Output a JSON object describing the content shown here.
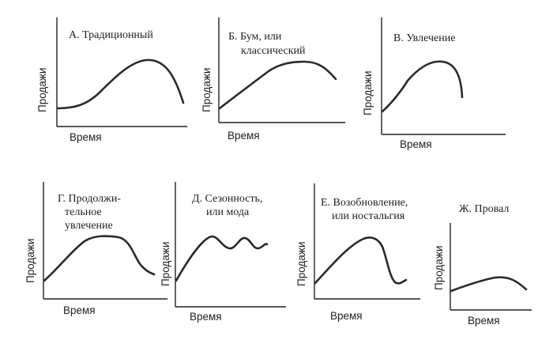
{
  "panels": [
    {
      "title": [
        "А. Традиционный"
      ],
      "xlabel": "Время",
      "ylabel": "Продажи",
      "pattern": "traditional"
    },
    {
      "title": [
        "Б. Бум, или",
        "классический"
      ],
      "xlabel": "Время",
      "ylabel": "Продажи",
      "pattern": "boom"
    },
    {
      "title": [
        "В. Увлечение"
      ],
      "xlabel": "Время",
      "ylabel": "Продажи",
      "pattern": "fad"
    },
    {
      "title": [
        "Г. Продолжи-",
        "тельное",
        "увлечение"
      ],
      "xlabel": "Время",
      "ylabel": "Продажи",
      "pattern": "extended-fad"
    },
    {
      "title": [
        "Д. Сезонность,",
        "или мода"
      ],
      "xlabel": "Время",
      "ylabel": "Продажи",
      "pattern": "seasonal"
    },
    {
      "title": [
        "Е. Возобновление,",
        "или ностальгия"
      ],
      "xlabel": "Время",
      "ylabel": "Продажи",
      "pattern": "revival"
    },
    {
      "title": [
        "Ж. Провал"
      ],
      "xlabel": "Время",
      "ylabel": "Продажи",
      "pattern": "failure"
    }
  ]
}
